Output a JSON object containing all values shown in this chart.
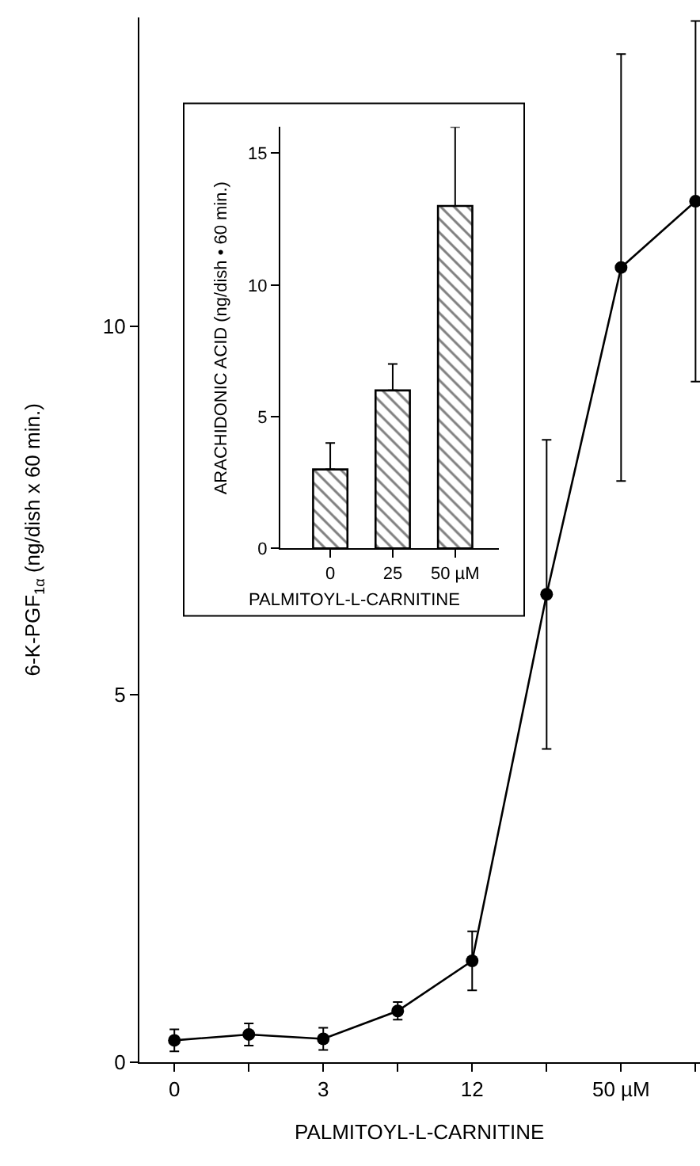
{
  "chart_data": [
    {
      "type": "line",
      "xlabel": "PALMITOYL-L-CARNITINE",
      "ylabel": "6-K-PGF$_{1α}$ (ng/dish x 60 min.)",
      "categories": [
        "0",
        null,
        "3",
        null,
        "12",
        null,
        "50 µM",
        null
      ],
      "values": [
        0.3,
        0.38,
        0.32,
        0.7,
        1.38,
        6.36,
        10.8,
        11.7
      ],
      "errors": [
        0.15,
        0.15,
        0.15,
        0.12,
        0.4,
        2.1,
        2.9,
        2.45
      ],
      "color": "#000000",
      "marker": "circle",
      "line_style": "solid",
      "ylim": [
        0,
        14.2
      ],
      "yticks": [
        0,
        5,
        10
      ]
    },
    {
      "type": "bar",
      "xlabel": "PALMITOYL-L-CARNITINE",
      "ylabel": "ARACHIDONIC ACID (ng/dish • 60 min.)",
      "categories": [
        "0",
        "25",
        "50 µM"
      ],
      "values": [
        3,
        6,
        13
      ],
      "errors": [
        [
          3,
          4
        ],
        [
          6,
          7
        ],
        [
          13,
          16
        ]
      ],
      "color": "#000000",
      "ylim": [
        0,
        16
      ],
      "yticks": [
        0,
        5,
        10,
        15
      ]
    }
  ]
}
